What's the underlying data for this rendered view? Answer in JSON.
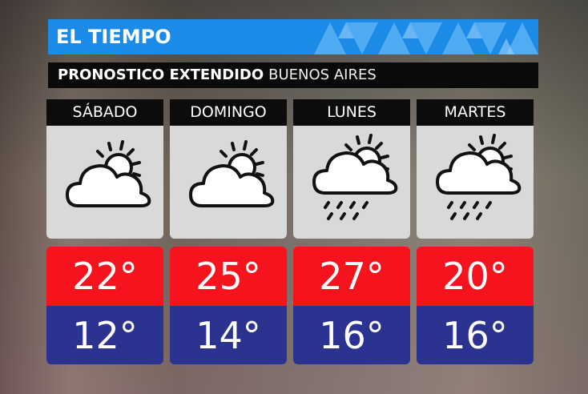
{
  "header": {
    "title": "EL TIEMPO",
    "subtitle": "PRONOSTICO EXTENDIDO",
    "location": "BUENOS AIRES"
  },
  "days": [
    {
      "name": "SÁBADO",
      "high": "22°",
      "low": "12°"
    },
    {
      "name": "DOMINGO",
      "high": "25°",
      "low": "14°"
    },
    {
      "name": "LUNES",
      "high": "27°",
      "low": "16°"
    },
    {
      "name": "MARTES",
      "high": "20°",
      "low": "16°"
    }
  ]
}
